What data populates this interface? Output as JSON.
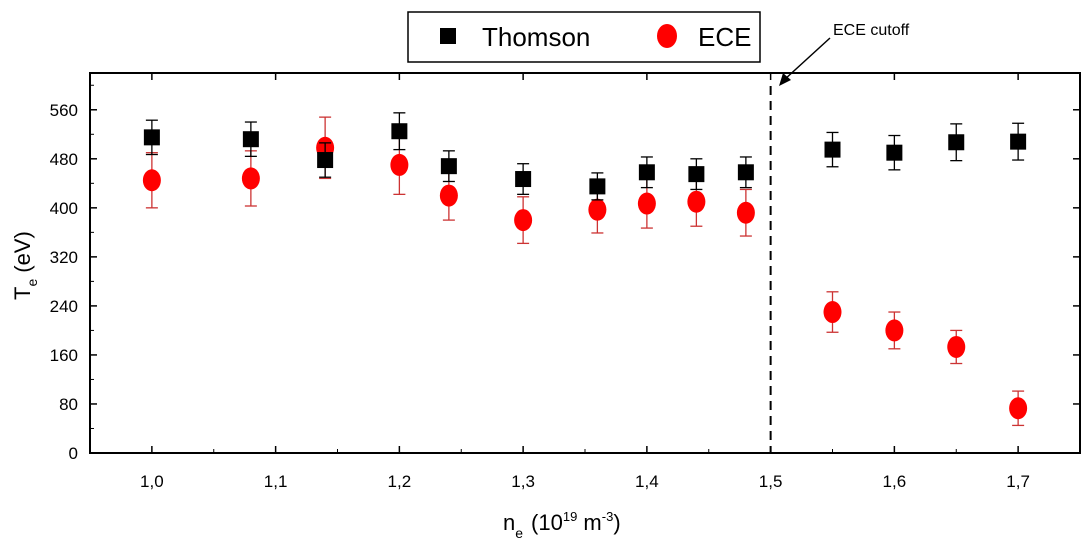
{
  "chart_data": {
    "type": "scatter",
    "xlabel": {
      "base": "n",
      "sub": "e",
      "units_open": "(10",
      "units_sup": "19",
      "units_mid": " m",
      "units_sup2": "-3",
      "units_close": ")"
    },
    "ylabel": {
      "base": "T",
      "sub": "e",
      "units": "(eV)"
    },
    "xlim": [
      0.95,
      1.75
    ],
    "ylim": [
      0,
      620
    ],
    "x_ticks": [
      1.0,
      1.1,
      1.2,
      1.3,
      1.4,
      1.5,
      1.6,
      1.7
    ],
    "x_tick_labels": [
      "1,0",
      "1,1",
      "1,2",
      "1,3",
      "1,4",
      "1,5",
      "1,6",
      "1,7"
    ],
    "y_ticks": [
      0,
      80,
      160,
      240,
      320,
      400,
      480,
      560
    ],
    "y_tick_labels": [
      "0",
      "80",
      "160",
      "240",
      "320",
      "400",
      "480",
      "560"
    ],
    "legend": {
      "placement": "top-center",
      "entries": [
        "Thomson",
        "ECE"
      ]
    },
    "annotation": {
      "text": "ECE cutoff",
      "x": 1.5
    },
    "colors": {
      "thomson": "#000000",
      "ece": "#ff0000",
      "ece_error": "#cc3333"
    },
    "series": [
      {
        "name": "Thomson",
        "marker": "square",
        "x": [
          1.0,
          1.08,
          1.14,
          1.2,
          1.24,
          1.3,
          1.36,
          1.4,
          1.44,
          1.48,
          1.55,
          1.6,
          1.65,
          1.7
        ],
        "y": [
          515,
          512,
          478,
          525,
          468,
          447,
          435,
          458,
          455,
          458,
          495,
          490,
          507,
          508
        ],
        "err": [
          28,
          28,
          28,
          30,
          25,
          25,
          22,
          25,
          25,
          25,
          28,
          28,
          30,
          30
        ]
      },
      {
        "name": "ECE",
        "marker": "circle",
        "x": [
          1.0,
          1.08,
          1.14,
          1.2,
          1.24,
          1.3,
          1.36,
          1.4,
          1.44,
          1.48,
          1.55,
          1.6,
          1.65,
          1.7
        ],
        "y": [
          445,
          448,
          498,
          470,
          420,
          380,
          397,
          407,
          410,
          392,
          230,
          200,
          173,
          73
        ],
        "err": [
          45,
          45,
          50,
          48,
          40,
          38,
          38,
          40,
          40,
          38,
          33,
          30,
          27,
          28
        ]
      }
    ]
  }
}
